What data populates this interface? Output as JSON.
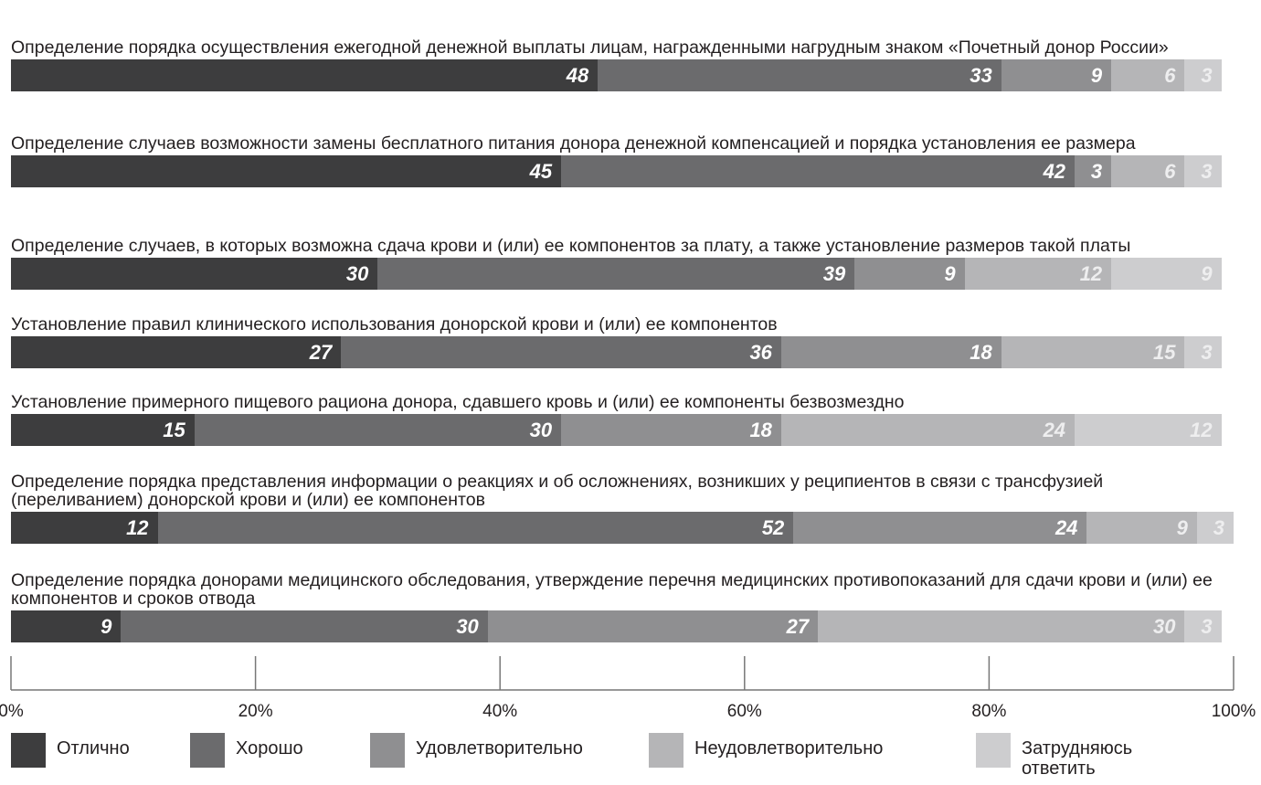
{
  "chart_data": {
    "type": "stacked-bar",
    "orientation": "horizontal",
    "categories": [
      "Определение порядка осуществления ежегодной денежной выплаты лицам, награжденными нагрудным знаком «Почетный донор России»",
      "Определение случаев возможности замены бесплатного питания донора денежной компенсацией и порядка установления ее размера",
      "Определение случаев, в которых возможна сдача крови и (или) ее компонентов за плату, а также установление размеров такой платы",
      "Установление правил клинического использования донорской крови и (или) ее компонентов",
      "Установление примерного пищевого рациона донора, сдавшего кровь и (или) ее компоненты безвозмездно",
      "Определение порядка представления информации о реакциях и об осложнениях, возникших у реципиентов в связи с трансфузией (переливанием) донорской крови и (или) ее компонентов",
      "Определение порядка донорами медицинского обследования, утверждение перечня медицинских противопоказаний для сдачи крови и (или) ее компонентов и сроков отвода"
    ],
    "series": [
      {
        "name": "Отлично",
        "color": "#3d3d3e",
        "values": [
          48,
          45,
          30,
          27,
          15,
          12,
          9
        ]
      },
      {
        "name": "Хорошо",
        "color": "#6b6b6d",
        "values": [
          33,
          42,
          39,
          36,
          30,
          52,
          30
        ]
      },
      {
        "name": "Удовлетворительно",
        "color": "#8f8f91",
        "values": [
          9,
          3,
          9,
          18,
          18,
          24,
          27
        ]
      },
      {
        "name": "Неудовлетворительно",
        "color": "#b5b5b7",
        "values": [
          6,
          6,
          12,
          15,
          24,
          9,
          30
        ]
      },
      {
        "name": "Затрудняюсь ответить",
        "color": "#cdcdcf",
        "values": [
          3,
          3,
          9,
          3,
          12,
          3,
          3
        ]
      }
    ],
    "xlim": [
      0,
      100
    ],
    "xticks": [
      {
        "value": 0,
        "label": "0%"
      },
      {
        "value": 20,
        "label": "20%"
      },
      {
        "value": 40,
        "label": "40%"
      },
      {
        "value": 60,
        "label": "60%"
      },
      {
        "value": 80,
        "label": "80%"
      },
      {
        "value": 100,
        "label": "100%"
      }
    ]
  }
}
